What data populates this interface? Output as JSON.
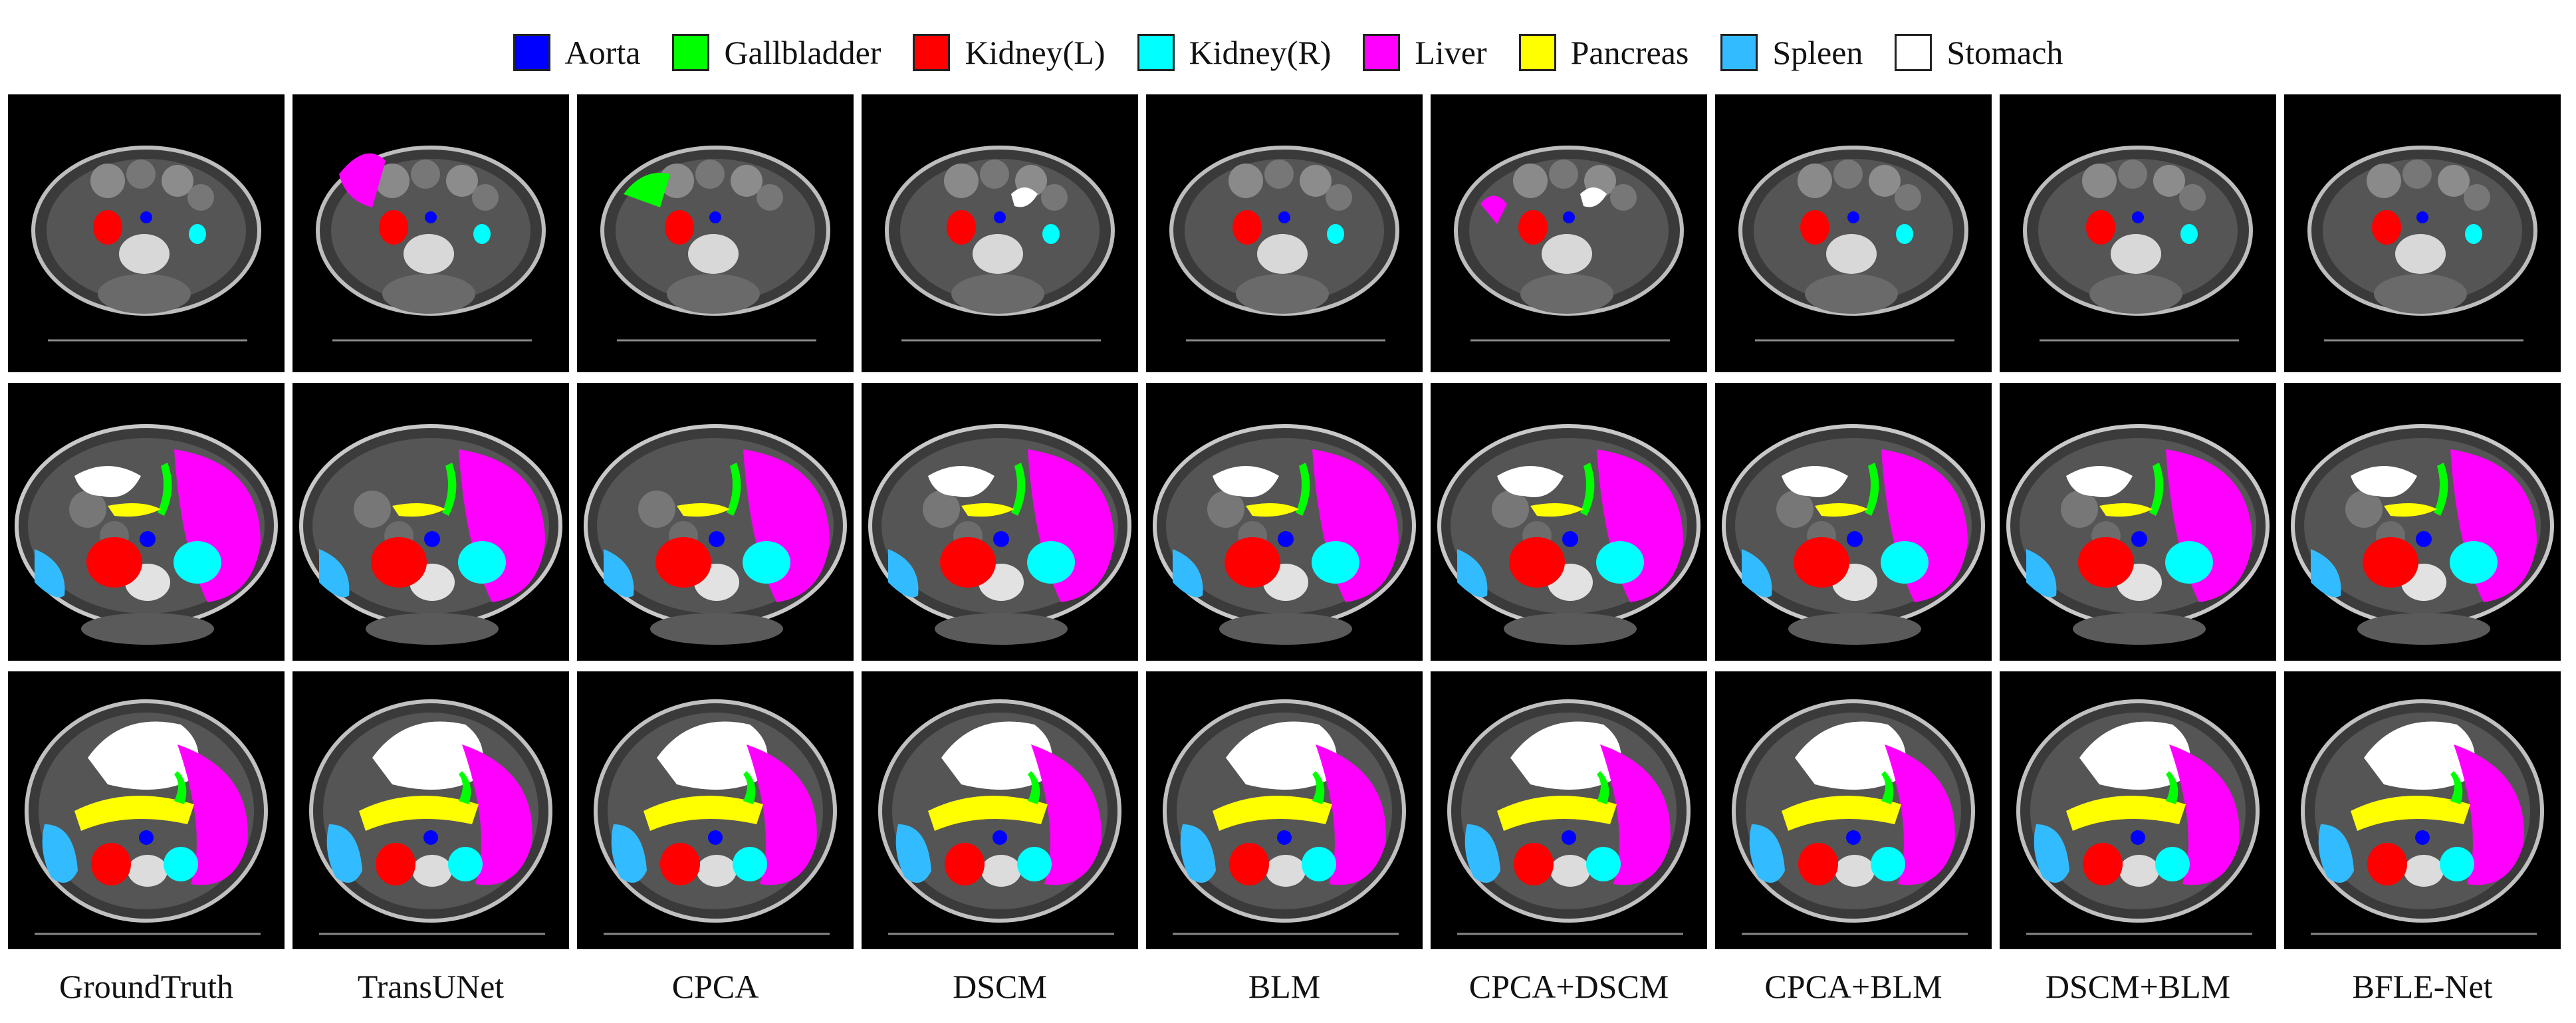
{
  "legend": {
    "items": [
      {
        "label": "Aorta",
        "color": "#0000ff"
      },
      {
        "label": "Gallbladder",
        "color": "#00ff00"
      },
      {
        "label": "Kidney(L)",
        "color": "#ff0000"
      },
      {
        "label": "Kidney(R)",
        "color": "#00ffff"
      },
      {
        "label": "Liver",
        "color": "#ff00ff"
      },
      {
        "label": "Pancreas",
        "color": "#ffff00"
      },
      {
        "label": "Spleen",
        "color": "#33bbff"
      },
      {
        "label": "Stomach",
        "color": "#ffffff"
      }
    ]
  },
  "columns": [
    {
      "label": "GroundTruth"
    },
    {
      "label": "TransUNet"
    },
    {
      "label": "CPCA"
    },
    {
      "label": "DSCM"
    },
    {
      "label": "BLM"
    },
    {
      "label": "CPCA+DSCM"
    },
    {
      "label": "CPCA+BLM"
    },
    {
      "label": "DSCM+BLM"
    },
    {
      "label": "BFLE-Net"
    }
  ],
  "rows": [
    {
      "slice": "ct-slice-row-1"
    },
    {
      "slice": "ct-slice-row-2"
    },
    {
      "slice": "ct-slice-row-3"
    }
  ]
}
